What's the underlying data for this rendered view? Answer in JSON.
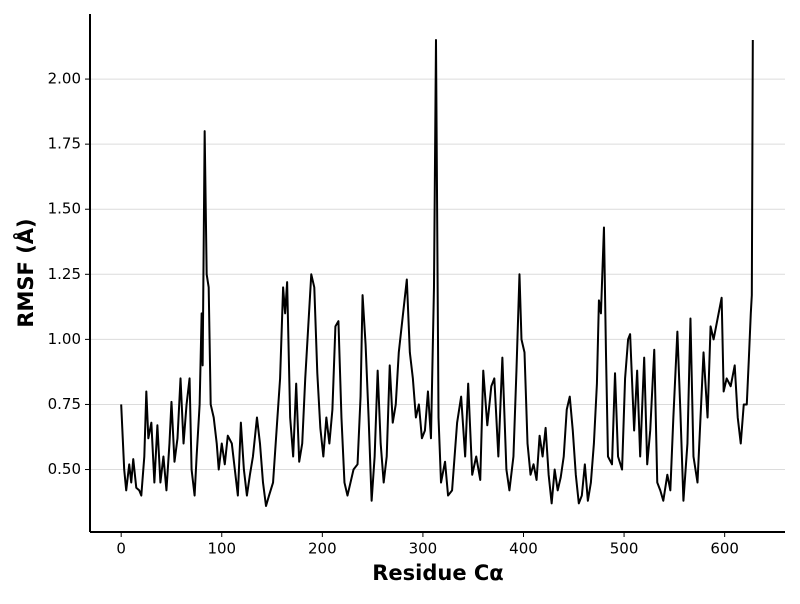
{
  "chart_data": {
    "type": "line",
    "xlabel": "Residue Cα",
    "ylabel": "RMSF (Å)",
    "grid": true,
    "color": "#000000",
    "xlim": [
      -31,
      660
    ],
    "ylim": [
      0.26,
      2.25
    ],
    "xticks": [
      0,
      100,
      200,
      300,
      400,
      500,
      600
    ],
    "yticks": [
      {
        "value": 0.5,
        "label": "0.50"
      },
      {
        "value": 0.75,
        "label": "0.75"
      },
      {
        "value": 1.0,
        "label": "1.00"
      },
      {
        "value": 1.25,
        "label": "1.25"
      },
      {
        "value": 1.5,
        "label": "1.50"
      },
      {
        "value": 1.75,
        "label": "1.75"
      },
      {
        "value": 2.0,
        "label": "2.00"
      }
    ],
    "x": [
      0,
      3,
      5,
      8,
      10,
      12,
      15,
      18,
      20,
      23,
      25,
      27,
      30,
      33,
      36,
      39,
      42,
      45,
      48,
      50,
      53,
      56,
      59,
      62,
      65,
      68,
      70,
      73,
      75,
      78,
      80,
      81,
      83,
      85,
      87,
      89,
      92,
      95,
      97,
      100,
      103,
      106,
      110,
      113,
      116,
      119,
      122,
      125,
      128,
      131,
      135,
      138,
      141,
      144,
      147,
      151,
      155,
      158,
      161,
      163,
      165,
      168,
      171,
      174,
      177,
      180,
      183,
      186,
      189,
      192,
      195,
      198,
      201,
      204,
      207,
      210,
      213,
      216,
      219,
      222,
      225,
      228,
      231,
      235,
      238,
      240,
      243,
      246,
      249,
      252,
      255,
      258,
      261,
      264,
      267,
      270,
      273,
      276,
      284,
      287,
      290,
      293,
      296,
      299,
      302,
      305,
      308,
      311,
      313,
      315.5,
      318,
      322,
      325,
      329,
      334,
      338,
      342,
      345,
      349,
      353,
      357,
      360,
      364,
      368,
      371,
      375,
      379,
      383,
      386,
      390,
      393,
      396,
      398,
      401,
      404,
      407,
      410,
      413,
      416,
      419,
      422,
      425,
      428,
      431,
      434,
      437,
      440,
      443,
      446,
      449,
      452,
      455,
      458,
      461,
      464,
      467,
      470,
      473,
      475,
      477,
      480,
      482,
      484,
      488,
      491,
      494,
      498,
      501,
      504,
      506,
      510,
      513,
      516,
      520,
      523,
      526,
      530,
      533,
      536,
      539,
      543,
      546,
      549,
      553,
      556,
      559,
      563,
      566,
      569,
      573,
      576,
      579,
      583,
      586,
      589,
      597,
      599,
      602,
      606,
      610,
      613,
      616,
      619,
      622,
      624,
      626,
      627,
      628
    ],
    "values": [
      0.75,
      0.5,
      0.42,
      0.52,
      0.45,
      0.54,
      0.43,
      0.42,
      0.4,
      0.55,
      0.8,
      0.62,
      0.68,
      0.45,
      0.67,
      0.45,
      0.55,
      0.42,
      0.6,
      0.76,
      0.53,
      0.62,
      0.85,
      0.6,
      0.75,
      0.85,
      0.5,
      0.4,
      0.55,
      0.75,
      1.1,
      0.9,
      1.8,
      1.25,
      1.2,
      0.75,
      0.7,
      0.6,
      0.5,
      0.6,
      0.52,
      0.63,
      0.6,
      0.5,
      0.4,
      0.68,
      0.5,
      0.4,
      0.48,
      0.55,
      0.7,
      0.6,
      0.45,
      0.36,
      0.4,
      0.45,
      0.68,
      0.85,
      1.2,
      1.1,
      1.22,
      0.7,
      0.55,
      0.83,
      0.53,
      0.6,
      0.85,
      1.05,
      1.25,
      1.2,
      0.87,
      0.66,
      0.55,
      0.7,
      0.6,
      0.73,
      1.05,
      1.07,
      0.7,
      0.45,
      0.4,
      0.45,
      0.5,
      0.52,
      0.78,
      1.17,
      0.98,
      0.7,
      0.38,
      0.55,
      0.88,
      0.6,
      0.45,
      0.55,
      0.9,
      0.68,
      0.75,
      0.95,
      1.23,
      0.95,
      0.85,
      0.7,
      0.75,
      0.62,
      0.65,
      0.8,
      0.62,
      1.2,
      2.15,
      0.7,
      0.45,
      0.53,
      0.4,
      0.42,
      0.68,
      0.78,
      0.55,
      0.83,
      0.48,
      0.55,
      0.46,
      0.88,
      0.67,
      0.82,
      0.85,
      0.55,
      0.93,
      0.5,
      0.42,
      0.55,
      0.88,
      1.25,
      1.0,
      0.95,
      0.6,
      0.48,
      0.52,
      0.46,
      0.63,
      0.55,
      0.66,
      0.48,
      0.37,
      0.5,
      0.42,
      0.47,
      0.55,
      0.73,
      0.78,
      0.65,
      0.48,
      0.37,
      0.4,
      0.52,
      0.38,
      0.45,
      0.6,
      0.83,
      1.15,
      1.1,
      1.43,
      0.95,
      0.55,
      0.52,
      0.87,
      0.55,
      0.5,
      0.85,
      1.0,
      1.02,
      0.65,
      0.88,
      0.55,
      0.93,
      0.52,
      0.65,
      0.96,
      0.45,
      0.42,
      0.38,
      0.48,
      0.42,
      0.7,
      1.03,
      0.72,
      0.38,
      0.6,
      1.08,
      0.55,
      0.45,
      0.7,
      0.95,
      0.7,
      1.05,
      1.0,
      1.16,
      0.8,
      0.85,
      0.82,
      0.9,
      0.7,
      0.6,
      0.75,
      0.75,
      0.92,
      1.1,
      1.17,
      2.15
    ]
  }
}
